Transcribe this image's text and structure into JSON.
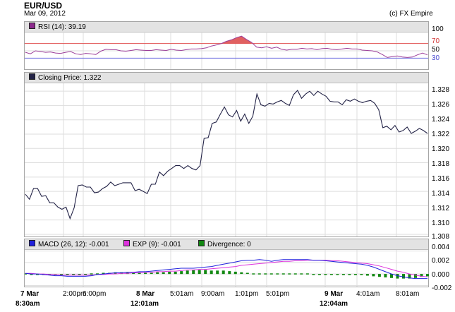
{
  "header": {
    "symbol": "EUR/USD",
    "date": "Mar 09, 2012",
    "credit": "(c) FX Empire"
  },
  "rsi": {
    "legend": "RSI (14): 39.19",
    "ticks": [
      "100",
      "70",
      "50",
      "30"
    ],
    "colors": {
      "line": "#9b3d99",
      "overbought": "#e05050",
      "oversold": "#6a6adf",
      "fill": "#e06060"
    },
    "chart_data": {
      "type": "line",
      "ylim": [
        0,
        100
      ],
      "levels": [
        70,
        30
      ],
      "values": [
        46,
        42,
        50,
        48,
        46,
        47,
        44,
        43,
        46,
        48,
        42,
        40,
        43,
        42,
        40,
        49,
        54,
        53,
        53,
        50,
        49,
        51,
        53,
        52,
        51,
        51,
        53,
        52,
        51,
        54,
        52,
        51,
        53,
        55,
        55,
        56,
        58,
        63,
        66,
        70,
        76,
        80,
        86,
        90,
        81,
        73,
        60,
        58,
        61,
        57,
        60,
        54,
        52,
        54,
        54,
        57,
        55,
        56,
        53,
        56,
        57,
        54,
        53,
        55,
        57,
        55,
        55,
        52,
        51,
        50,
        47,
        40,
        32,
        34,
        36,
        33,
        32,
        33,
        39,
        44,
        39
      ]
    }
  },
  "price": {
    "legend": "Closing Price: 1.322",
    "ticks": [
      "1.328",
      "1.326",
      "1.324",
      "1.322",
      "1.320",
      "1.318",
      "1.316",
      "1.314",
      "1.312",
      "1.310",
      "1.308"
    ],
    "colors": {
      "line": "#232347"
    },
    "chart_data": {
      "type": "line",
      "ylim": [
        1.3077,
        1.3291
      ],
      "values": [
        1.3136,
        1.3129,
        1.3144,
        1.3144,
        1.3133,
        1.3134,
        1.3124,
        1.3124,
        1.3118,
        1.3115,
        1.3118,
        1.3102,
        1.3117,
        1.3148,
        1.3149,
        1.3146,
        1.3146,
        1.3138,
        1.3139,
        1.3144,
        1.3147,
        1.3153,
        1.3148,
        1.315,
        1.3152,
        1.3152,
        1.3152,
        1.3141,
        1.3143,
        1.314,
        1.3137,
        1.315,
        1.315,
        1.3167,
        1.3162,
        1.3168,
        1.3172,
        1.3176,
        1.3176,
        1.3172,
        1.3176,
        1.3172,
        1.317,
        1.3176,
        1.3214,
        1.3215,
        1.3235,
        1.3237,
        1.3248,
        1.3258,
        1.3247,
        1.3244,
        1.3253,
        1.3238,
        1.3248,
        1.3235,
        1.3245,
        1.3276,
        1.3261,
        1.3259,
        1.3263,
        1.3262,
        1.3265,
        1.3267,
        1.3263,
        1.326,
        1.3275,
        1.3281,
        1.327,
        1.3276,
        1.328,
        1.3274,
        1.328,
        1.3276,
        1.3273,
        1.3266,
        1.3265,
        1.3265,
        1.3261,
        1.3268,
        1.3266,
        1.3269,
        1.3266,
        1.3264,
        1.3266,
        1.3267,
        1.3263,
        1.3254,
        1.3229,
        1.3231,
        1.3226,
        1.3232,
        1.3223,
        1.3225,
        1.323,
        1.3221,
        1.3224,
        1.3228,
        1.3225,
        1.3221
      ]
    }
  },
  "macd": {
    "legend_macd": "MACD (26, 12): -0.001",
    "legend_exp": "EXP (9): -0.001",
    "legend_div": "Divergence: 0",
    "ticks": [
      "0.004",
      "0.002",
      "0.000",
      "-0.002"
    ],
    "colors": {
      "macd": "#2020dd",
      "exp": "#dd33dd",
      "divergence": "#118811"
    },
    "chart_data": {
      "type": "line",
      "ylim": [
        -0.0022,
        0.0042
      ],
      "macd": [
        0.0001,
        0.0,
        0.0,
        -0.0001,
        -0.0002,
        -0.0003,
        -0.0003,
        -0.0004,
        -0.0004,
        -0.0004,
        -0.0004,
        -0.0003,
        -0.0001,
        0.0,
        0.0001,
        0.0002,
        0.0002,
        0.0003,
        0.0003,
        0.0004,
        0.0004,
        0.0005,
        0.0006,
        0.0007,
        0.0008,
        0.0009,
        0.001,
        0.001,
        0.001,
        0.0011,
        0.0012,
        0.0013,
        0.0015,
        0.0017,
        0.0019,
        0.0021,
        0.0023,
        0.0024,
        0.0024,
        0.0025,
        0.0024,
        0.0022,
        0.0024,
        0.0025,
        0.0025,
        0.0025,
        0.0025,
        0.0025,
        0.0024,
        0.0024,
        0.0023,
        0.0022,
        0.0021,
        0.002,
        0.0019,
        0.0018,
        0.0017,
        0.0015,
        0.0012,
        0.0008,
        0.0004,
        0.0,
        -0.0003,
        -0.0005,
        -0.0007,
        -0.0008,
        -0.0008,
        -0.0008
      ],
      "exp": [
        0.0001,
        0.0001,
        0.0,
        0.0,
        -0.0001,
        -0.0001,
        -0.0002,
        -0.0002,
        -0.0002,
        -0.0002,
        -0.0002,
        -0.0002,
        -0.0001,
        -0.0001,
        0.0,
        0.0,
        0.0001,
        0.0001,
        0.0002,
        0.0002,
        0.0003,
        0.0003,
        0.0004,
        0.0004,
        0.0005,
        0.0005,
        0.0006,
        0.0007,
        0.0007,
        0.0008,
        0.0008,
        0.0009,
        0.001,
        0.0011,
        0.0012,
        0.0013,
        0.0015,
        0.0016,
        0.0017,
        0.0018,
        0.0019,
        0.002,
        0.0021,
        0.0022,
        0.0022,
        0.0023,
        0.0023,
        0.0024,
        0.0024,
        0.0024,
        0.0024,
        0.0023,
        0.0023,
        0.0022,
        0.0021,
        0.002,
        0.0019,
        0.0018,
        0.0016,
        0.0014,
        0.0011,
        0.0008,
        0.0005,
        0.0003,
        0.0,
        -0.0002,
        -0.0004,
        -0.0005
      ],
      "divergence": [
        0.0001,
        0.0,
        0.0,
        -0.0001,
        -0.0001,
        -0.0001,
        -0.0001,
        -0.0002,
        -0.0001,
        -0.0001,
        -0.0001,
        0.0001,
        0.0001,
        0.0002,
        0.0002,
        0.0003,
        0.0003,
        0.0003,
        0.0002,
        0.0003,
        0.0002,
        0.0002,
        0.0003,
        0.0003,
        0.0004,
        0.0004,
        0.0005,
        0.0006,
        0.0007,
        0.0007,
        0.0007,
        0.0006,
        0.0006,
        0.0006,
        0.0005,
        0.0004,
        0.0003,
        0.0002,
        0.0001,
        0.0001,
        0.0001,
        0.0001,
        0.0001,
        0.0001,
        0.0001,
        0.0001,
        0.0001,
        0.0001,
        0.0,
        -0.0001,
        -0.0001,
        -0.0001,
        -0.0001,
        -0.0002,
        -0.0002,
        -0.0002,
        -0.0002,
        -0.0003,
        -0.0004,
        -0.0005,
        -0.0006,
        -0.0007,
        -0.0008,
        -0.0008,
        -0.0008,
        -0.0007,
        -0.0005,
        -0.0004
      ]
    }
  },
  "xaxis": {
    "labels": [
      {
        "line1": "7 Mar",
        "line2": "8:30am"
      },
      {
        "line1": "2:00pm",
        "line2": ""
      },
      {
        "line1": "6:00pm",
        "line2": ""
      },
      {
        "line1": "8 Mar",
        "line2": "12:01am"
      },
      {
        "line1": "5:01am",
        "line2": ""
      },
      {
        "line1": "9:00am",
        "line2": ""
      },
      {
        "line1": "1:01pm",
        "line2": ""
      },
      {
        "line1": "5:01pm",
        "line2": ""
      },
      {
        "line1": "9 Mar",
        "line2": "12:04am"
      },
      {
        "line1": "4:01am",
        "line2": ""
      },
      {
        "line1": "8:01am",
        "line2": ""
      }
    ]
  }
}
